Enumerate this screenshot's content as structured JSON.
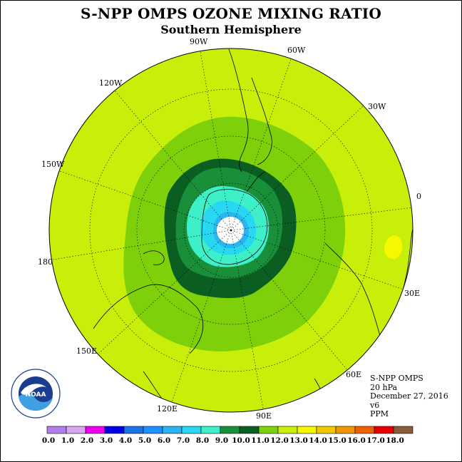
{
  "title": "S-NPP OMPS OZONE MIXING RATIO",
  "subtitle": "Southern Hemisphere",
  "longitude_labels": [
    "90W",
    "60W",
    "30W",
    "0",
    "30E",
    "60E",
    "90E",
    "120E",
    "150E",
    "180",
    "150W",
    "120W"
  ],
  "info": {
    "instrument": "S-NPP OMPS",
    "level": "20 hPa",
    "date": "December 27, 2016",
    "version": "v6",
    "units": "PPM"
  },
  "logo_text": "NOAA",
  "colorbar": {
    "ticks": [
      "0.0",
      "1.0",
      "2.0",
      "3.0",
      "4.0",
      "5.0",
      "6.0",
      "7.0",
      "8.0",
      "9.0",
      "10.0",
      "11.0",
      "12.0",
      "13.0",
      "14.0",
      "15.0",
      "16.0",
      "17.0",
      "18.0"
    ],
    "colors": [
      "#b07ee8",
      "#d7a8f0",
      "#ee00ee",
      "#0000e0",
      "#1a73e8",
      "#1e90ff",
      "#2bb5f0",
      "#28d8f0",
      "#3ef0c8",
      "#1a8f3a",
      "#0b5e22",
      "#7ed10a",
      "#c7ef0a",
      "#f7f700",
      "#f3c800",
      "#f09800",
      "#f06000",
      "#e80000",
      "#8a5a3a"
    ]
  },
  "map_colors": {
    "c_7_8": "#3ef0c8",
    "c_6_7": "#28d8f0",
    "c_5_6": "#2bb5f0",
    "c_8_9": "#1a8f3a",
    "c_9_10": "#0b5e22",
    "c_10_11": "#7ed10a",
    "c_11_12": "#c7ef0a",
    "c_12_13": "#f7f700",
    "pole_hole": "#ffffff"
  }
}
